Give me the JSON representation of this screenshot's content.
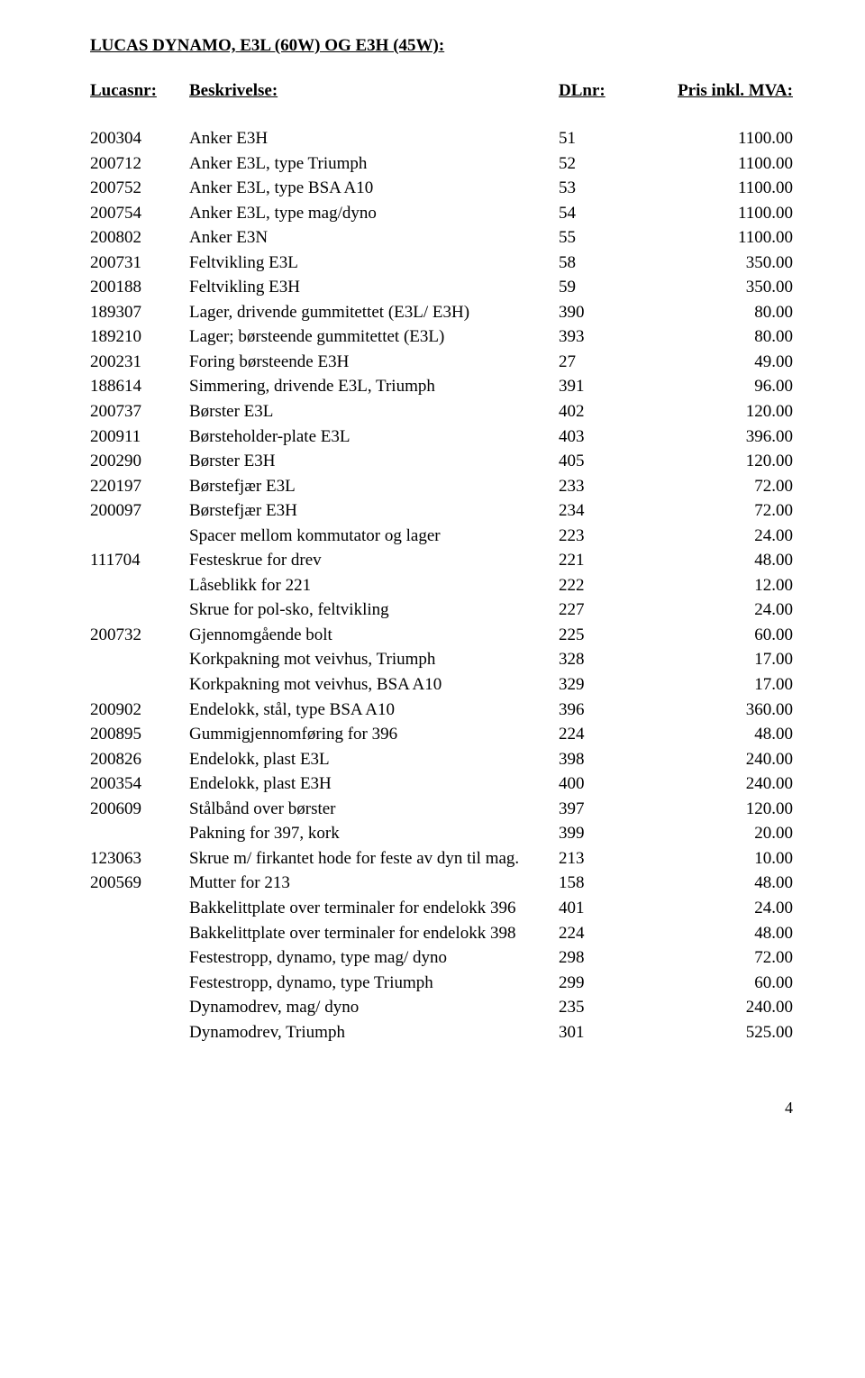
{
  "title": "LUCAS DYNAMO, E3L (60W) OG E3H (45W):",
  "headers": {
    "lucasnr": "Lucasnr:",
    "beskrivelse": "Beskrivelse:",
    "dlnr": "DLnr:",
    "pris": "Pris inkl. MVA:"
  },
  "rows": [
    {
      "lucasnr": "200304",
      "beskrivelse": "Anker E3H",
      "dlnr": "51",
      "pris": "1100.00"
    },
    {
      "lucasnr": "200712",
      "beskrivelse": "Anker E3L, type Triumph",
      "dlnr": "52",
      "pris": "1100.00"
    },
    {
      "lucasnr": "200752",
      "beskrivelse": "Anker E3L, type BSA A10",
      "dlnr": "53",
      "pris": "1100.00"
    },
    {
      "lucasnr": "200754",
      "beskrivelse": "Anker E3L, type mag/dyno",
      "dlnr": "54",
      "pris": "1100.00"
    },
    {
      "lucasnr": "200802",
      "beskrivelse": "Anker E3N",
      "dlnr": "55",
      "pris": "1100.00"
    },
    {
      "lucasnr": "200731",
      "beskrivelse": "Feltvikling E3L",
      "dlnr": "58",
      "pris": "350.00"
    },
    {
      "lucasnr": "200188",
      "beskrivelse": "Feltvikling E3H",
      "dlnr": "59",
      "pris": "350.00"
    },
    {
      "lucasnr": "189307",
      "beskrivelse": "Lager, drivende gummitettet (E3L/ E3H)",
      "dlnr": "390",
      "pris": "80.00"
    },
    {
      "lucasnr": "189210",
      "beskrivelse": "Lager; børsteende gummitettet (E3L)",
      "dlnr": "393",
      "pris": "80.00"
    },
    {
      "lucasnr": "200231",
      "beskrivelse": "Foring børsteende E3H",
      "dlnr": "27",
      "pris": "49.00"
    },
    {
      "lucasnr": "188614",
      "beskrivelse": "Simmering, drivende E3L, Triumph",
      "dlnr": "391",
      "pris": "96.00"
    },
    {
      "lucasnr": "200737",
      "beskrivelse": "Børster E3L",
      "dlnr": "402",
      "pris": "120.00"
    },
    {
      "lucasnr": "200911",
      "beskrivelse": "Børsteholder-plate E3L",
      "dlnr": "403",
      "pris": "396.00"
    },
    {
      "lucasnr": "200290",
      "beskrivelse": "Børster E3H",
      "dlnr": "405",
      "pris": "120.00"
    },
    {
      "lucasnr": "220197",
      "beskrivelse": "Børstefjær E3L",
      "dlnr": "233",
      "pris": "72.00"
    },
    {
      "lucasnr": "200097",
      "beskrivelse": "Børstefjær E3H",
      "dlnr": "234",
      "pris": "72.00"
    },
    {
      "lucasnr": "",
      "beskrivelse": "Spacer mellom kommutator og lager",
      "dlnr": "223",
      "pris": "24.00"
    },
    {
      "lucasnr": "111704",
      "beskrivelse": "Festeskrue for drev",
      "dlnr": "221",
      "pris": "48.00"
    },
    {
      "lucasnr": "",
      "beskrivelse": "Låseblikk for 221",
      "dlnr": "222",
      "pris": "12.00"
    },
    {
      "lucasnr": "",
      "beskrivelse": "Skrue for pol-sko, feltvikling",
      "dlnr": "227",
      "pris": "24.00"
    },
    {
      "lucasnr": "200732",
      "beskrivelse": "Gjennomgående bolt",
      "dlnr": "225",
      "pris": "60.00"
    },
    {
      "lucasnr": "",
      "beskrivelse": "Korkpakning mot veivhus, Triumph",
      "dlnr": "328",
      "pris": "17.00"
    },
    {
      "lucasnr": "",
      "beskrivelse": "Korkpakning mot veivhus, BSA A10",
      "dlnr": "329",
      "pris": "17.00"
    },
    {
      "lucasnr": "200902",
      "beskrivelse": "Endelokk, stål, type BSA A10",
      "dlnr": "396",
      "pris": "360.00"
    },
    {
      "lucasnr": "200895",
      "beskrivelse": "Gummigjennomføring for 396",
      "dlnr": "224",
      "pris": "48.00"
    },
    {
      "lucasnr": "200826",
      "beskrivelse": "Endelokk, plast E3L",
      "dlnr": "398",
      "pris": "240.00"
    },
    {
      "lucasnr": "200354",
      "beskrivelse": "Endelokk, plast E3H",
      "dlnr": "400",
      "pris": "240.00"
    },
    {
      "lucasnr": "200609",
      "beskrivelse": "Stålbånd over børster",
      "dlnr": "397",
      "pris": "120.00"
    },
    {
      "lucasnr": "",
      "beskrivelse": "Pakning for 397, kork",
      "dlnr": "399",
      "pris": "20.00"
    },
    {
      "lucasnr": "123063",
      "beskrivelse": "Skrue m/ firkantet hode for feste av dyn til mag.",
      "dlnr": "213",
      "pris": "10.00"
    },
    {
      "lucasnr": "200569",
      "beskrivelse": "Mutter for 213",
      "dlnr": "158",
      "pris": "48.00"
    },
    {
      "lucasnr": "",
      "beskrivelse": "Bakkelittplate over terminaler for endelokk 396",
      "dlnr": "401",
      "pris": "24.00"
    },
    {
      "lucasnr": "",
      "beskrivelse": "Bakkelittplate over terminaler for endelokk 398",
      "dlnr": "224",
      "pris": "48.00"
    },
    {
      "lucasnr": "",
      "beskrivelse": "Festestropp, dynamo, type mag/ dyno",
      "dlnr": "298",
      "pris": "72.00"
    },
    {
      "lucasnr": "",
      "beskrivelse": "Festestropp, dynamo, type Triumph",
      "dlnr": "299",
      "pris": "60.00"
    },
    {
      "lucasnr": "",
      "beskrivelse": "Dynamodrev, mag/ dyno",
      "dlnr": "235",
      "pris": "240.00"
    },
    {
      "lucasnr": "",
      "beskrivelse": "Dynamodrev, Triumph",
      "dlnr": "301",
      "pris": "525.00"
    }
  ],
  "page_number": "4"
}
